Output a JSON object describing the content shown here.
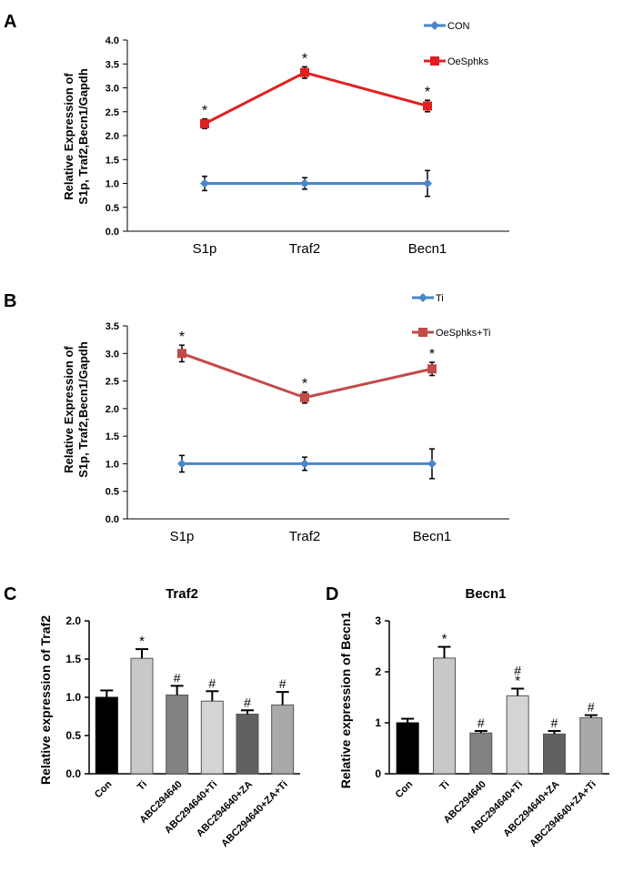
{
  "colors": {
    "blue": "#4a86c8",
    "red": "#e02020",
    "darkred": "#c24a48",
    "axis": "#000000"
  },
  "chart_data": [
    {
      "panel": "A",
      "type": "line",
      "categories": [
        "S1p",
        "Traf2",
        "Becn1"
      ],
      "ylabel_lines": [
        "Relative Expression of",
        "S1p, Traf2,Becn1/Gapdh"
      ],
      "ylim": [
        0,
        4.0
      ],
      "yticks": [
        "0.0",
        "0.5",
        "1.0",
        "1.5",
        "2.0",
        "2.5",
        "3.0",
        "3.5",
        "4.0"
      ],
      "series": [
        {
          "name": "CON",
          "values": [
            1.0,
            1.0,
            1.0
          ],
          "errors": [
            0.15,
            0.12,
            0.27
          ],
          "marker": "diamond",
          "color": "#4a86c8",
          "stars": [
            "",
            "",
            ""
          ]
        },
        {
          "name": "OeSphks",
          "values": [
            2.25,
            3.32,
            2.62
          ],
          "errors": [
            0.1,
            0.12,
            0.12
          ],
          "marker": "square",
          "color": "#e02020",
          "stars": [
            "*",
            "*",
            "*"
          ]
        }
      ]
    },
    {
      "panel": "B",
      "type": "line",
      "categories": [
        "S1p",
        "Traf2",
        "Becn1"
      ],
      "ylabel_lines": [
        "Relative Expression of",
        "S1p, Traf2,Becn1/Gapdh"
      ],
      "ylim": [
        0,
        3.5
      ],
      "yticks": [
        "0.0",
        "0.5",
        "1.0",
        "1.5",
        "2.0",
        "2.5",
        "3.0",
        "3.5"
      ],
      "series": [
        {
          "name": "Ti",
          "values": [
            1.0,
            1.0,
            1.0
          ],
          "errors": [
            0.15,
            0.12,
            0.27
          ],
          "marker": "diamond",
          "color": "#4a86c8",
          "stars": [
            "",
            "",
            ""
          ]
        },
        {
          "name": "OeSphks+Ti",
          "values": [
            3.0,
            2.2,
            2.72
          ],
          "errors": [
            0.15,
            0.1,
            0.12
          ],
          "marker": "square",
          "color": "#c24a48",
          "stars": [
            "*",
            "*",
            "*"
          ]
        }
      ]
    },
    {
      "panel": "C",
      "type": "bar",
      "title": "Traf2",
      "ylabel": "Relative expression of Traf2",
      "ylim": [
        0,
        2.0
      ],
      "yticks": [
        "0.0",
        "0.5",
        "1.0",
        "1.5",
        "2.0"
      ],
      "categories": [
        "Con",
        "Ti",
        "ABC294640",
        "ABC294640+Ti",
        "ABC294640+ZA",
        "ABC294640+ZA+Ti"
      ],
      "values": [
        1.0,
        1.51,
        1.03,
        0.95,
        0.78,
        0.9
      ],
      "errors": [
        0.09,
        0.12,
        0.12,
        0.13,
        0.05,
        0.17
      ],
      "annotations": [
        "",
        "*",
        "#",
        "#",
        "#",
        "#"
      ],
      "bar_colors": [
        "#000000",
        "#c8c8c8",
        "#828282",
        "#d4d4d4",
        "#616161",
        "#a9a9a9"
      ]
    },
    {
      "panel": "D",
      "type": "bar",
      "title": "Becn1",
      "ylabel": "Relative expression of Becn1",
      "ylim": [
        0,
        3
      ],
      "yticks": [
        "0",
        "1",
        "2",
        "3"
      ],
      "categories": [
        "Con",
        "Ti",
        "ABC294640",
        "ABC294640+Ti",
        "ABC294640+ZA",
        "ABC294640+ZA+Ti"
      ],
      "values": [
        1.0,
        2.27,
        0.8,
        1.53,
        0.78,
        1.1
      ],
      "errors": [
        0.08,
        0.22,
        0.04,
        0.14,
        0.06,
        0.05
      ],
      "annotations": [
        "",
        "*",
        "#",
        "#\n*",
        "#",
        "#"
      ],
      "bar_colors": [
        "#000000",
        "#c8c8c8",
        "#828282",
        "#d4d4d4",
        "#616161",
        "#a9a9a9"
      ]
    }
  ]
}
